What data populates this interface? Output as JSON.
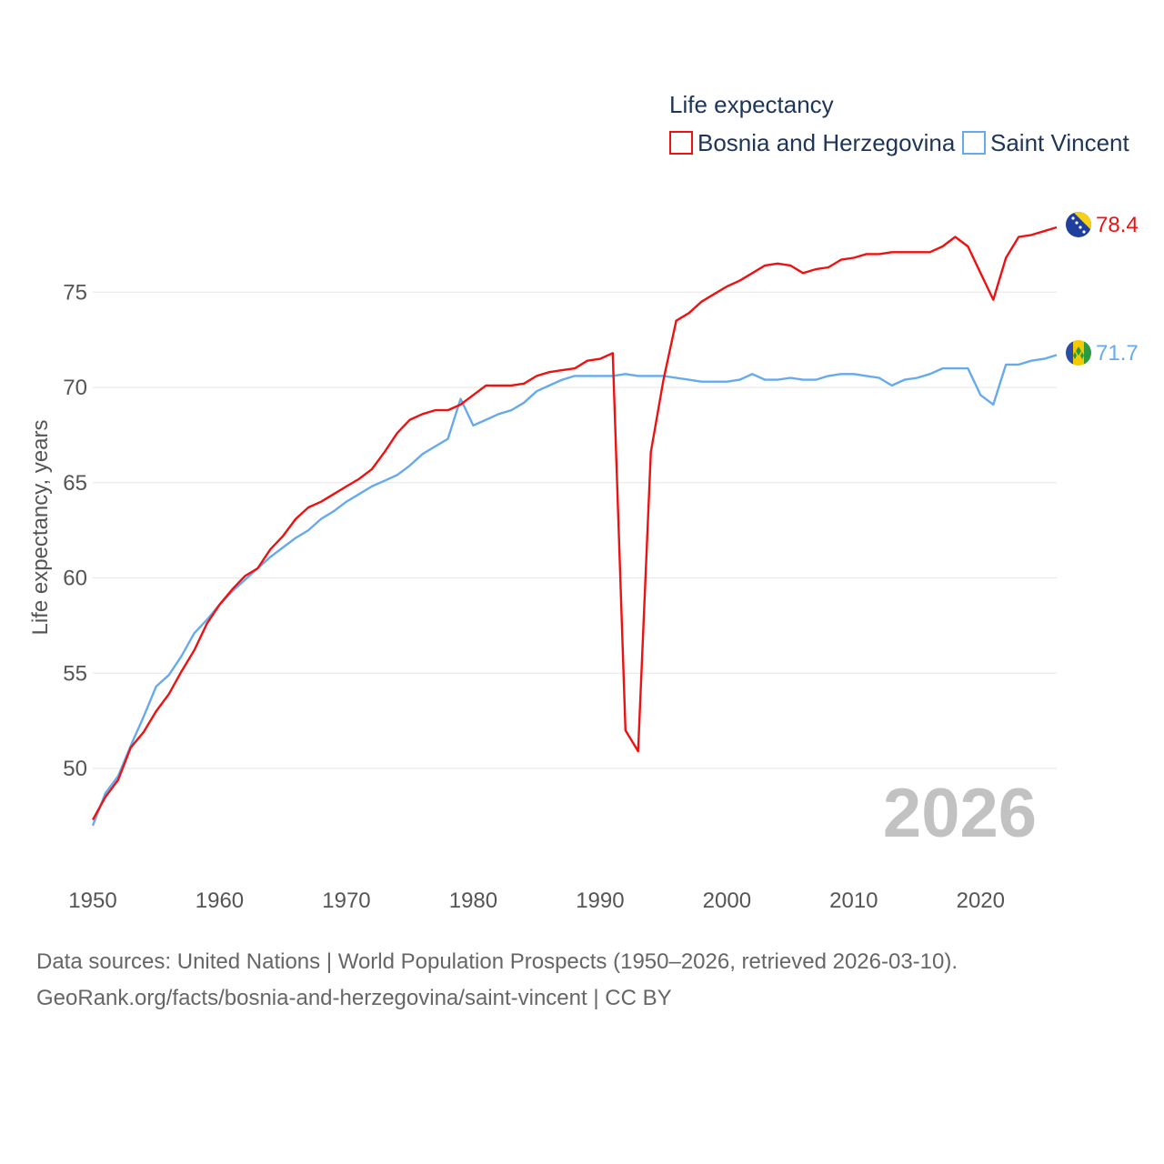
{
  "colors": {
    "bosnia": "#ee1111",
    "saint_vincent": "#66aaee",
    "grid": "#e6e6e6",
    "axis_text": "#555555",
    "legend_text": "#1d3557",
    "watermark": "#c2c2c2"
  },
  "legend": {
    "title": "Life expectancy",
    "items": [
      "Bosnia and Herzegovina",
      "Saint Vincent"
    ]
  },
  "watermark_year": "2026",
  "end_labels": {
    "bosnia": "78.4",
    "saint_vincent": "71.7"
  },
  "flags": {
    "bosnia": "bosnia-flag-icon",
    "saint_vincent": "saint-vincent-flag-icon"
  },
  "footer": {
    "line1": "Data sources: United Nations | World Population Prospects (1950–2026, retrieved 2026-03-10).",
    "line2": "GeoRank.org/facts/bosnia-and-herzegovina/saint-vincent | CC BY"
  },
  "chart_data": {
    "type": "line",
    "title": "Life expectancy",
    "xlabel": "",
    "ylabel": "Life expectancy, years",
    "xlim": [
      1950,
      2026
    ],
    "ylim": [
      45.5,
      80.5
    ],
    "x_ticks": [
      1950,
      1960,
      1970,
      1980,
      1990,
      2000,
      2010,
      2020
    ],
    "y_ticks": [
      50,
      55,
      60,
      65,
      70,
      75
    ],
    "x": [
      1950,
      1951,
      1952,
      1953,
      1954,
      1955,
      1956,
      1957,
      1958,
      1959,
      1960,
      1961,
      1962,
      1963,
      1964,
      1965,
      1966,
      1967,
      1968,
      1969,
      1970,
      1971,
      1972,
      1973,
      1974,
      1975,
      1976,
      1977,
      1978,
      1979,
      1980,
      1981,
      1982,
      1983,
      1984,
      1985,
      1986,
      1987,
      1988,
      1989,
      1990,
      1991,
      1992,
      1993,
      1994,
      1995,
      1996,
      1997,
      1998,
      1999,
      2000,
      2001,
      2002,
      2003,
      2004,
      2005,
      2006,
      2007,
      2008,
      2009,
      2010,
      2011,
      2012,
      2013,
      2014,
      2015,
      2016,
      2017,
      2018,
      2019,
      2020,
      2021,
      2022,
      2023,
      2024,
      2025,
      2026
    ],
    "series": [
      {
        "name": "Bosnia and Herzegovina",
        "values": [
          47.3,
          48.5,
          49.4,
          51.1,
          51.9,
          53.0,
          53.9,
          55.1,
          56.2,
          57.6,
          58.6,
          59.4,
          60.1,
          60.5,
          61.5,
          62.2,
          63.1,
          63.7,
          64.0,
          64.4,
          64.8,
          65.2,
          65.7,
          66.6,
          67.6,
          68.3,
          68.6,
          68.8,
          68.8,
          69.1,
          69.6,
          70.1,
          70.1,
          70.1,
          70.2,
          70.6,
          70.8,
          70.9,
          71.0,
          71.4,
          71.5,
          71.8,
          52.0,
          50.9,
          66.6,
          70.4,
          73.5,
          73.9,
          74.5,
          74.9,
          75.3,
          75.6,
          76.0,
          76.4,
          76.5,
          76.4,
          76.0,
          76.2,
          76.3,
          76.7,
          76.8,
          77.0,
          77.0,
          77.1,
          77.1,
          77.1,
          77.1,
          77.4,
          77.9,
          77.4,
          76.0,
          74.6,
          76.8,
          77.9,
          78.0,
          78.2,
          78.4
        ]
      },
      {
        "name": "Saint Vincent",
        "values": [
          47.0,
          48.7,
          49.6,
          51.2,
          52.7,
          54.3,
          54.9,
          55.9,
          57.1,
          57.8,
          58.6,
          59.3,
          59.9,
          60.5,
          61.1,
          61.6,
          62.1,
          62.5,
          63.1,
          63.5,
          64.0,
          64.4,
          64.8,
          65.1,
          65.4,
          65.9,
          66.5,
          66.9,
          67.3,
          69.4,
          68.0,
          68.3,
          68.6,
          68.8,
          69.2,
          69.8,
          70.1,
          70.4,
          70.6,
          70.6,
          70.6,
          70.6,
          70.7,
          70.6,
          70.6,
          70.6,
          70.5,
          70.4,
          70.3,
          70.3,
          70.3,
          70.4,
          70.7,
          70.4,
          70.4,
          70.5,
          70.4,
          70.4,
          70.6,
          70.7,
          70.7,
          70.6,
          70.5,
          70.1,
          70.4,
          70.5,
          70.7,
          71.0,
          71.0,
          71.0,
          69.6,
          69.1,
          71.2,
          71.2,
          71.4,
          71.5,
          71.7
        ]
      }
    ]
  }
}
